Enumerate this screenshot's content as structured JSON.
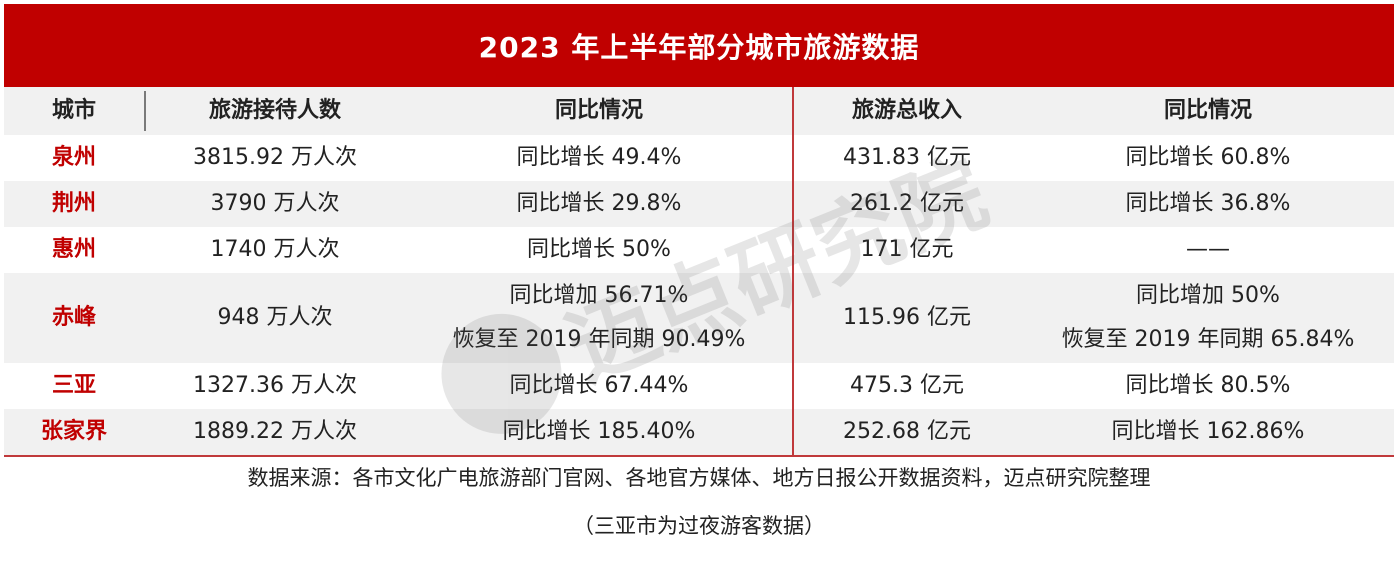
{
  "chart_data": {
    "type": "table",
    "title": "2023 年上半年部分城市旅游数据",
    "columns": [
      "城市",
      "旅游接待人数",
      "同比情况",
      "旅游总收入",
      "同比情况"
    ],
    "rows": [
      {
        "city": "泉州",
        "visitors": [
          "3815.92 万人次"
        ],
        "visitors_yoy": [
          "同比增长 49.4%"
        ],
        "revenue": [
          "431.83 亿元"
        ],
        "revenue_yoy": [
          "同比增长 60.8%"
        ]
      },
      {
        "city": "荆州",
        "visitors": [
          "3790 万人次"
        ],
        "visitors_yoy": [
          "同比增长 29.8%"
        ],
        "revenue": [
          "261.2 亿元"
        ],
        "revenue_yoy": [
          "同比增长 36.8%"
        ]
      },
      {
        "city": "惠州",
        "visitors": [
          "1740 万人次"
        ],
        "visitors_yoy": [
          "同比增长 50%"
        ],
        "revenue": [
          "171 亿元"
        ],
        "revenue_yoy": [
          "——"
        ]
      },
      {
        "city": "赤峰",
        "visitors": [
          "948 万人次"
        ],
        "visitors_yoy": [
          "同比增加 56.71%",
          "恢复至 2019 年同期 90.49%"
        ],
        "revenue": [
          "115.96 亿元"
        ],
        "revenue_yoy": [
          "同比增加 50%",
          "恢复至 2019 年同期 65.84%"
        ]
      },
      {
        "city": "三亚",
        "visitors": [
          "1327.36 万人次"
        ],
        "visitors_yoy": [
          "同比增长 67.44%"
        ],
        "revenue": [
          "475.3 亿元"
        ],
        "revenue_yoy": [
          "同比增长 80.5%"
        ]
      },
      {
        "city": "张家界",
        "visitors": [
          "1889.22 万人次"
        ],
        "visitors_yoy": [
          "同比增长 185.40%"
        ],
        "revenue": [
          "252.68 亿元"
        ],
        "revenue_yoy": [
          "同比增长 162.86%"
        ]
      }
    ]
  },
  "footer": {
    "source": "数据来源：各市文化广电旅游部门官网、各地官方媒体、地方日报公开数据资料，迈点研究院整理",
    "note": "（三亚市为过夜游客数据）"
  },
  "watermark": {
    "text": "迈点研究院"
  },
  "colors": {
    "accent": "#c00000",
    "shade": "#f1f1f1",
    "divider": "#c0393b"
  }
}
